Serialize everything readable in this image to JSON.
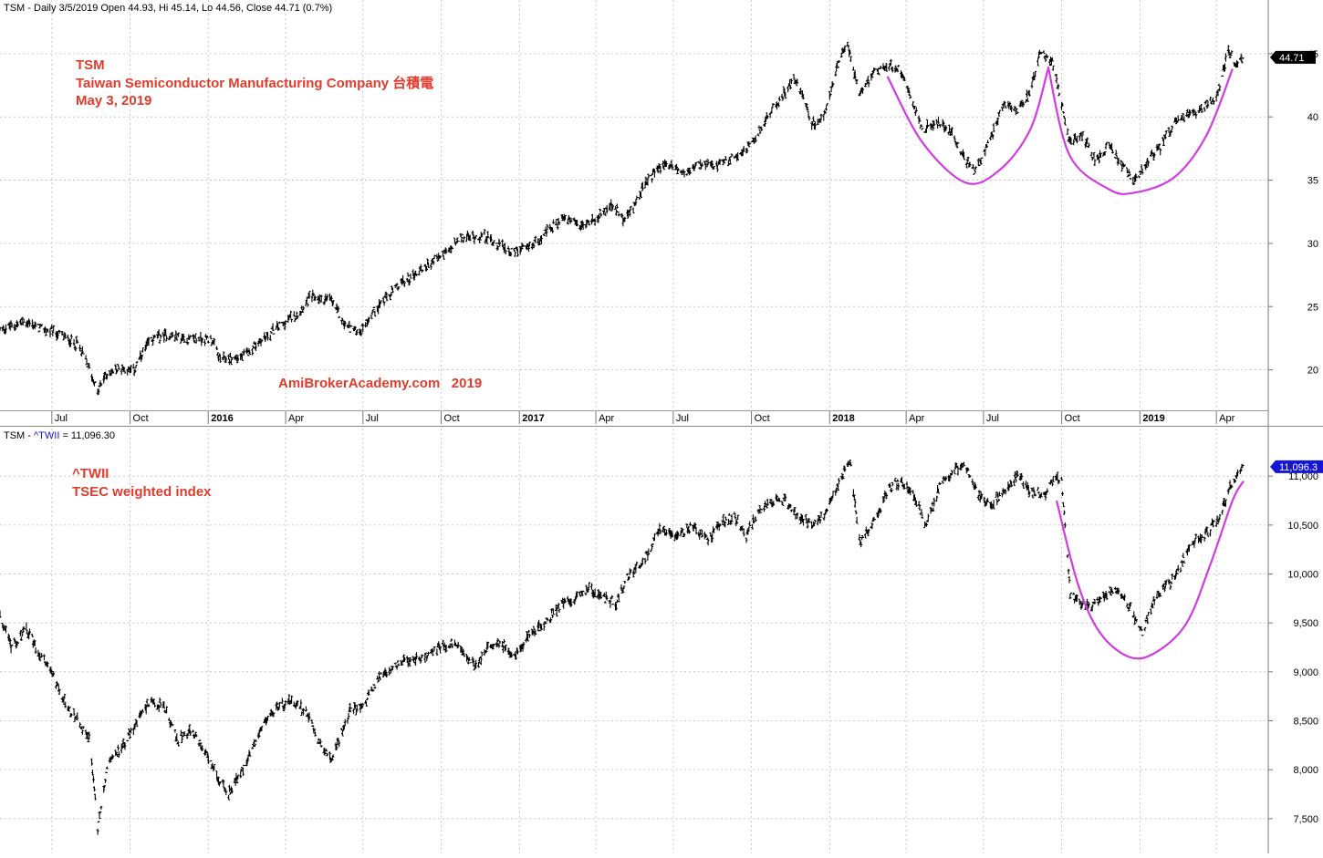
{
  "chart_data": [
    {
      "type": "line",
      "style": "ohlc-bars",
      "header": "TSM - Daily 3/5/2019 Open 44.93, Hi 45.14, Lo 44.56, Close 44.71 (0.7%)",
      "annotation_lines": [
        "TSM",
        "Taiwan Semiconductor Manufacturing Company 台積電",
        "May 3, 2019"
      ],
      "watermark": "AmiBrokerAcademy.com   2019",
      "last_value_label": "44.71",
      "y_ticks": [
        "20",
        "25",
        "30",
        "35",
        "40",
        "45"
      ],
      "y_tick_values": [
        20,
        25,
        30,
        35,
        40,
        45
      ],
      "ylim": [
        16.8,
        47.8
      ],
      "x_ticks": [
        {
          "label": "Jul",
          "bold": false
        },
        {
          "label": "Oct",
          "bold": false
        },
        {
          "label": "2016",
          "bold": true
        },
        {
          "label": "Apr",
          "bold": false
        },
        {
          "label": "Jul",
          "bold": false
        },
        {
          "label": "Oct",
          "bold": false
        },
        {
          "label": "2017",
          "bold": true
        },
        {
          "label": "Apr",
          "bold": false
        },
        {
          "label": "Jul",
          "bold": false
        },
        {
          "label": "Oct",
          "bold": false
        },
        {
          "label": "2018",
          "bold": true
        },
        {
          "label": "Apr",
          "bold": false
        },
        {
          "label": "Jul",
          "bold": false
        },
        {
          "label": "Oct",
          "bold": false
        },
        {
          "label": "2019",
          "bold": true
        },
        {
          "label": "Apr",
          "bold": false
        }
      ],
      "x_tick_dates": [
        "2015-07-01",
        "2015-10-01",
        "2016-01-01",
        "2016-04-01",
        "2016-07-01",
        "2016-10-01",
        "2017-01-01",
        "2017-04-01",
        "2017-07-01",
        "2017-10-01",
        "2018-01-01",
        "2018-04-01",
        "2018-07-01",
        "2018-10-01",
        "2019-01-01",
        "2019-04-01"
      ],
      "xlim": [
        "2015-05-01",
        "2019-06-01"
      ],
      "series": [
        {
          "name": "TSM",
          "color": "#000000",
          "points": [
            [
              "2015-05-01",
              23.2
            ],
            [
              "2015-06-01",
              23.8
            ],
            [
              "2015-06-15",
              23.3
            ],
            [
              "2015-07-10",
              22.8
            ],
            [
              "2015-08-01",
              22.0
            ],
            [
              "2015-08-15",
              20.0
            ],
            [
              "2015-08-24",
              18.2
            ],
            [
              "2015-09-01",
              19.5
            ],
            [
              "2015-09-20",
              20.2
            ],
            [
              "2015-10-05",
              19.9
            ],
            [
              "2015-10-25",
              22.4
            ],
            [
              "2015-11-15",
              22.8
            ],
            [
              "2015-12-10",
              22.4
            ],
            [
              "2016-01-04",
              22.5
            ],
            [
              "2016-01-15",
              20.8
            ],
            [
              "2016-02-10",
              21.0
            ],
            [
              "2016-03-01",
              22.2
            ],
            [
              "2016-03-25",
              23.5
            ],
            [
              "2016-04-15",
              24.5
            ],
            [
              "2016-05-01",
              25.8
            ],
            [
              "2016-05-25",
              25.5
            ],
            [
              "2016-06-10",
              23.5
            ],
            [
              "2016-06-27",
              23.0
            ],
            [
              "2016-07-15",
              24.8
            ],
            [
              "2016-08-15",
              26.8
            ],
            [
              "2016-09-15",
              28.3
            ],
            [
              "2016-10-10",
              29.4
            ],
            [
              "2016-10-25",
              30.4
            ],
            [
              "2016-11-20",
              30.6
            ],
            [
              "2016-12-05",
              30.0
            ],
            [
              "2016-12-25",
              29.3
            ],
            [
              "2017-01-10",
              29.6
            ],
            [
              "2017-02-01",
              30.8
            ],
            [
              "2017-02-20",
              32.0
            ],
            [
              "2017-03-15",
              31.3
            ],
            [
              "2017-04-05",
              32.2
            ],
            [
              "2017-04-20",
              33.0
            ],
            [
              "2017-05-05",
              31.8
            ],
            [
              "2017-05-25",
              34.2
            ],
            [
              "2017-06-10",
              35.8
            ],
            [
              "2017-06-25",
              36.3
            ],
            [
              "2017-07-15",
              35.5
            ],
            [
              "2017-08-01",
              36.2
            ],
            [
              "2017-08-20",
              36.0
            ],
            [
              "2017-09-10",
              36.8
            ],
            [
              "2017-10-01",
              37.8
            ],
            [
              "2017-10-20",
              40.0
            ],
            [
              "2017-11-10",
              42.0
            ],
            [
              "2017-11-20",
              43.0
            ],
            [
              "2017-12-01",
              41.8
            ],
            [
              "2017-12-10",
              39.5
            ],
            [
              "2017-12-25",
              39.8
            ],
            [
              "2018-01-08",
              43.5
            ],
            [
              "2018-01-22",
              46.0
            ],
            [
              "2018-02-05",
              41.5
            ],
            [
              "2018-02-20",
              43.5
            ],
            [
              "2018-03-10",
              44.0
            ],
            [
              "2018-03-25",
              43.8
            ],
            [
              "2018-04-05",
              42.0
            ],
            [
              "2018-04-20",
              39.0
            ],
            [
              "2018-05-10",
              39.5
            ],
            [
              "2018-05-25",
              38.8
            ],
            [
              "2018-06-10",
              36.5
            ],
            [
              "2018-06-20",
              35.7
            ],
            [
              "2018-07-05",
              37.5
            ],
            [
              "2018-07-25",
              41.0
            ],
            [
              "2018-08-10",
              40.7
            ],
            [
              "2018-08-25",
              42.0
            ],
            [
              "2018-09-05",
              45.0
            ],
            [
              "2018-09-20",
              44.3
            ],
            [
              "2018-09-28",
              42.0
            ],
            [
              "2018-10-10",
              38.0
            ],
            [
              "2018-10-25",
              38.5
            ],
            [
              "2018-11-10",
              36.5
            ],
            [
              "2018-11-25",
              37.8
            ],
            [
              "2018-12-10",
              36.2
            ],
            [
              "2018-12-26",
              34.8
            ],
            [
              "2019-01-10",
              36.5
            ],
            [
              "2019-01-25",
              37.5
            ],
            [
              "2019-02-10",
              39.5
            ],
            [
              "2019-03-01",
              40.2
            ],
            [
              "2019-03-15",
              40.8
            ],
            [
              "2019-04-01",
              41.5
            ],
            [
              "2019-04-15",
              45.3
            ],
            [
              "2019-04-25",
              44.0
            ],
            [
              "2019-05-03",
              44.71
            ]
          ]
        }
      ],
      "overlay_curves": [
        {
          "name": "cup-1",
          "color": "#d13be0",
          "points": [
            [
              "2018-03-10",
              43.2
            ],
            [
              "2018-04-20",
              38.0
            ],
            [
              "2018-06-10",
              34.8
            ],
            [
              "2018-07-20",
              35.8
            ],
            [
              "2018-08-25",
              39.0
            ],
            [
              "2018-09-15",
              43.8
            ]
          ]
        },
        {
          "name": "cup-2",
          "color": "#d13be0",
          "points": [
            [
              "2018-09-15",
              44.0
            ],
            [
              "2018-10-10",
              37.0
            ],
            [
              "2018-11-25",
              34.3
            ],
            [
              "2018-12-25",
              34.0
            ],
            [
              "2019-02-10",
              35.2
            ],
            [
              "2019-03-20",
              38.5
            ],
            [
              "2019-04-20",
              43.8
            ]
          ]
        }
      ]
    },
    {
      "type": "line",
      "style": "ohlc-bars",
      "header_prefix": "TSM - ",
      "header_symbol": "^TWII",
      "header_value": " = 11,096.30",
      "annotation_lines": [
        "^TWII",
        "TSEC weighted index"
      ],
      "last_value_label": "11,096.3",
      "y_ticks": [
        "7,500",
        "8,000",
        "8,500",
        "9,000",
        "9,500",
        "10,000",
        "10,500",
        "11,000"
      ],
      "y_tick_values": [
        7500,
        8000,
        8500,
        9000,
        9500,
        10000,
        10500,
        11000
      ],
      "ylim": [
        7200,
        11300
      ],
      "xlim": [
        "2015-05-01",
        "2019-06-01"
      ],
      "series": [
        {
          "name": "^TWII",
          "color": "#000000",
          "points": [
            [
              "2015-05-01",
              9550
            ],
            [
              "2015-05-15",
              9250
            ],
            [
              "2015-06-01",
              9450
            ],
            [
              "2015-06-15",
              9200
            ],
            [
              "2015-07-01",
              9000
            ],
            [
              "2015-07-15",
              8700
            ],
            [
              "2015-08-01",
              8500
            ],
            [
              "2015-08-15",
              8300
            ],
            [
              "2015-08-24",
              7400
            ],
            [
              "2015-09-05",
              8100
            ],
            [
              "2015-09-20",
              8200
            ],
            [
              "2015-10-10",
              8500
            ],
            [
              "2015-10-25",
              8700
            ],
            [
              "2015-11-10",
              8650
            ],
            [
              "2015-11-25",
              8300
            ],
            [
              "2015-12-10",
              8400
            ],
            [
              "2015-12-25",
              8250
            ],
            [
              "2016-01-10",
              7950
            ],
            [
              "2016-01-25",
              7750
            ],
            [
              "2016-02-10",
              8000
            ],
            [
              "2016-02-25",
              8300
            ],
            [
              "2016-03-15",
              8600
            ],
            [
              "2016-04-05",
              8700
            ],
            [
              "2016-04-25",
              8600
            ],
            [
              "2016-05-10",
              8300
            ],
            [
              "2016-05-25",
              8100
            ],
            [
              "2016-06-15",
              8600
            ],
            [
              "2016-07-01",
              8650
            ],
            [
              "2016-07-20",
              8950
            ],
            [
              "2016-08-15",
              9100
            ],
            [
              "2016-09-10",
              9150
            ],
            [
              "2016-10-01",
              9250
            ],
            [
              "2016-10-20",
              9300
            ],
            [
              "2016-11-10",
              9050
            ],
            [
              "2016-11-25",
              9250
            ],
            [
              "2016-12-10",
              9300
            ],
            [
              "2016-12-25",
              9150
            ],
            [
              "2017-01-15",
              9400
            ],
            [
              "2017-02-01",
              9500
            ],
            [
              "2017-02-20",
              9700
            ],
            [
              "2017-03-10",
              9750
            ],
            [
              "2017-03-25",
              9850
            ],
            [
              "2017-04-10",
              9750
            ],
            [
              "2017-04-25",
              9700
            ],
            [
              "2017-05-10",
              10000
            ],
            [
              "2017-05-25",
              10100
            ],
            [
              "2017-06-15",
              10450
            ],
            [
              "2017-07-05",
              10400
            ],
            [
              "2017-07-25",
              10500
            ],
            [
              "2017-08-10",
              10350
            ],
            [
              "2017-08-25",
              10500
            ],
            [
              "2017-09-10",
              10600
            ],
            [
              "2017-09-25",
              10400
            ],
            [
              "2017-10-10",
              10650
            ],
            [
              "2017-10-25",
              10750
            ],
            [
              "2017-11-10",
              10750
            ],
            [
              "2017-11-25",
              10600
            ],
            [
              "2017-12-10",
              10500
            ],
            [
              "2017-12-25",
              10600
            ],
            [
              "2018-01-10",
              10900
            ],
            [
              "2018-01-25",
              11150
            ],
            [
              "2018-02-06",
              10300
            ],
            [
              "2018-02-12",
              10400
            ],
            [
              "2018-02-25",
              10550
            ],
            [
              "2018-03-10",
              10850
            ],
            [
              "2018-03-25",
              10950
            ],
            [
              "2018-04-10",
              10800
            ],
            [
              "2018-04-25",
              10500
            ],
            [
              "2018-05-10",
              10900
            ],
            [
              "2018-05-25",
              11050
            ],
            [
              "2018-06-10",
              11100
            ],
            [
              "2018-06-25",
              10800
            ],
            [
              "2018-07-10",
              10700
            ],
            [
              "2018-07-25",
              10850
            ],
            [
              "2018-08-10",
              11000
            ],
            [
              "2018-08-25",
              10850
            ],
            [
              "2018-09-10",
              10800
            ],
            [
              "2018-09-25",
              11000
            ],
            [
              "2018-10-01",
              10950
            ],
            [
              "2018-10-11",
              9800
            ],
            [
              "2018-10-25",
              9700
            ],
            [
              "2018-11-05",
              9650
            ],
            [
              "2018-11-20",
              9800
            ],
            [
              "2018-12-05",
              9850
            ],
            [
              "2018-12-20",
              9650
            ],
            [
              "2019-01-04",
              9400
            ],
            [
              "2019-01-20",
              9800
            ],
            [
              "2019-02-10",
              9950
            ],
            [
              "2019-03-01",
              10300
            ],
            [
              "2019-03-20",
              10400
            ],
            [
              "2019-04-05",
              10600
            ],
            [
              "2019-04-20",
              10950
            ],
            [
              "2019-05-03",
              11096
            ]
          ]
        }
      ],
      "overlay_curves": [
        {
          "name": "cup-3",
          "color": "#d13be0",
          "points": [
            [
              "2018-09-25",
              10750
            ],
            [
              "2018-10-20",
              9900
            ],
            [
              "2018-11-15",
              9400
            ],
            [
              "2018-12-20",
              9150
            ],
            [
              "2019-01-20",
              9200
            ],
            [
              "2019-02-25",
              9500
            ],
            [
              "2019-03-25",
              10100
            ],
            [
              "2019-04-20",
              10750
            ],
            [
              "2019-05-03",
              10950
            ]
          ]
        }
      ]
    }
  ],
  "colors": {
    "annotation": "#e03c2e",
    "cup": "#d13be0",
    "grid": "#c8c8c8",
    "blue_label": "#1515d8",
    "price_label_bg": "#000000",
    "index_label_bg": "#1515d8"
  }
}
